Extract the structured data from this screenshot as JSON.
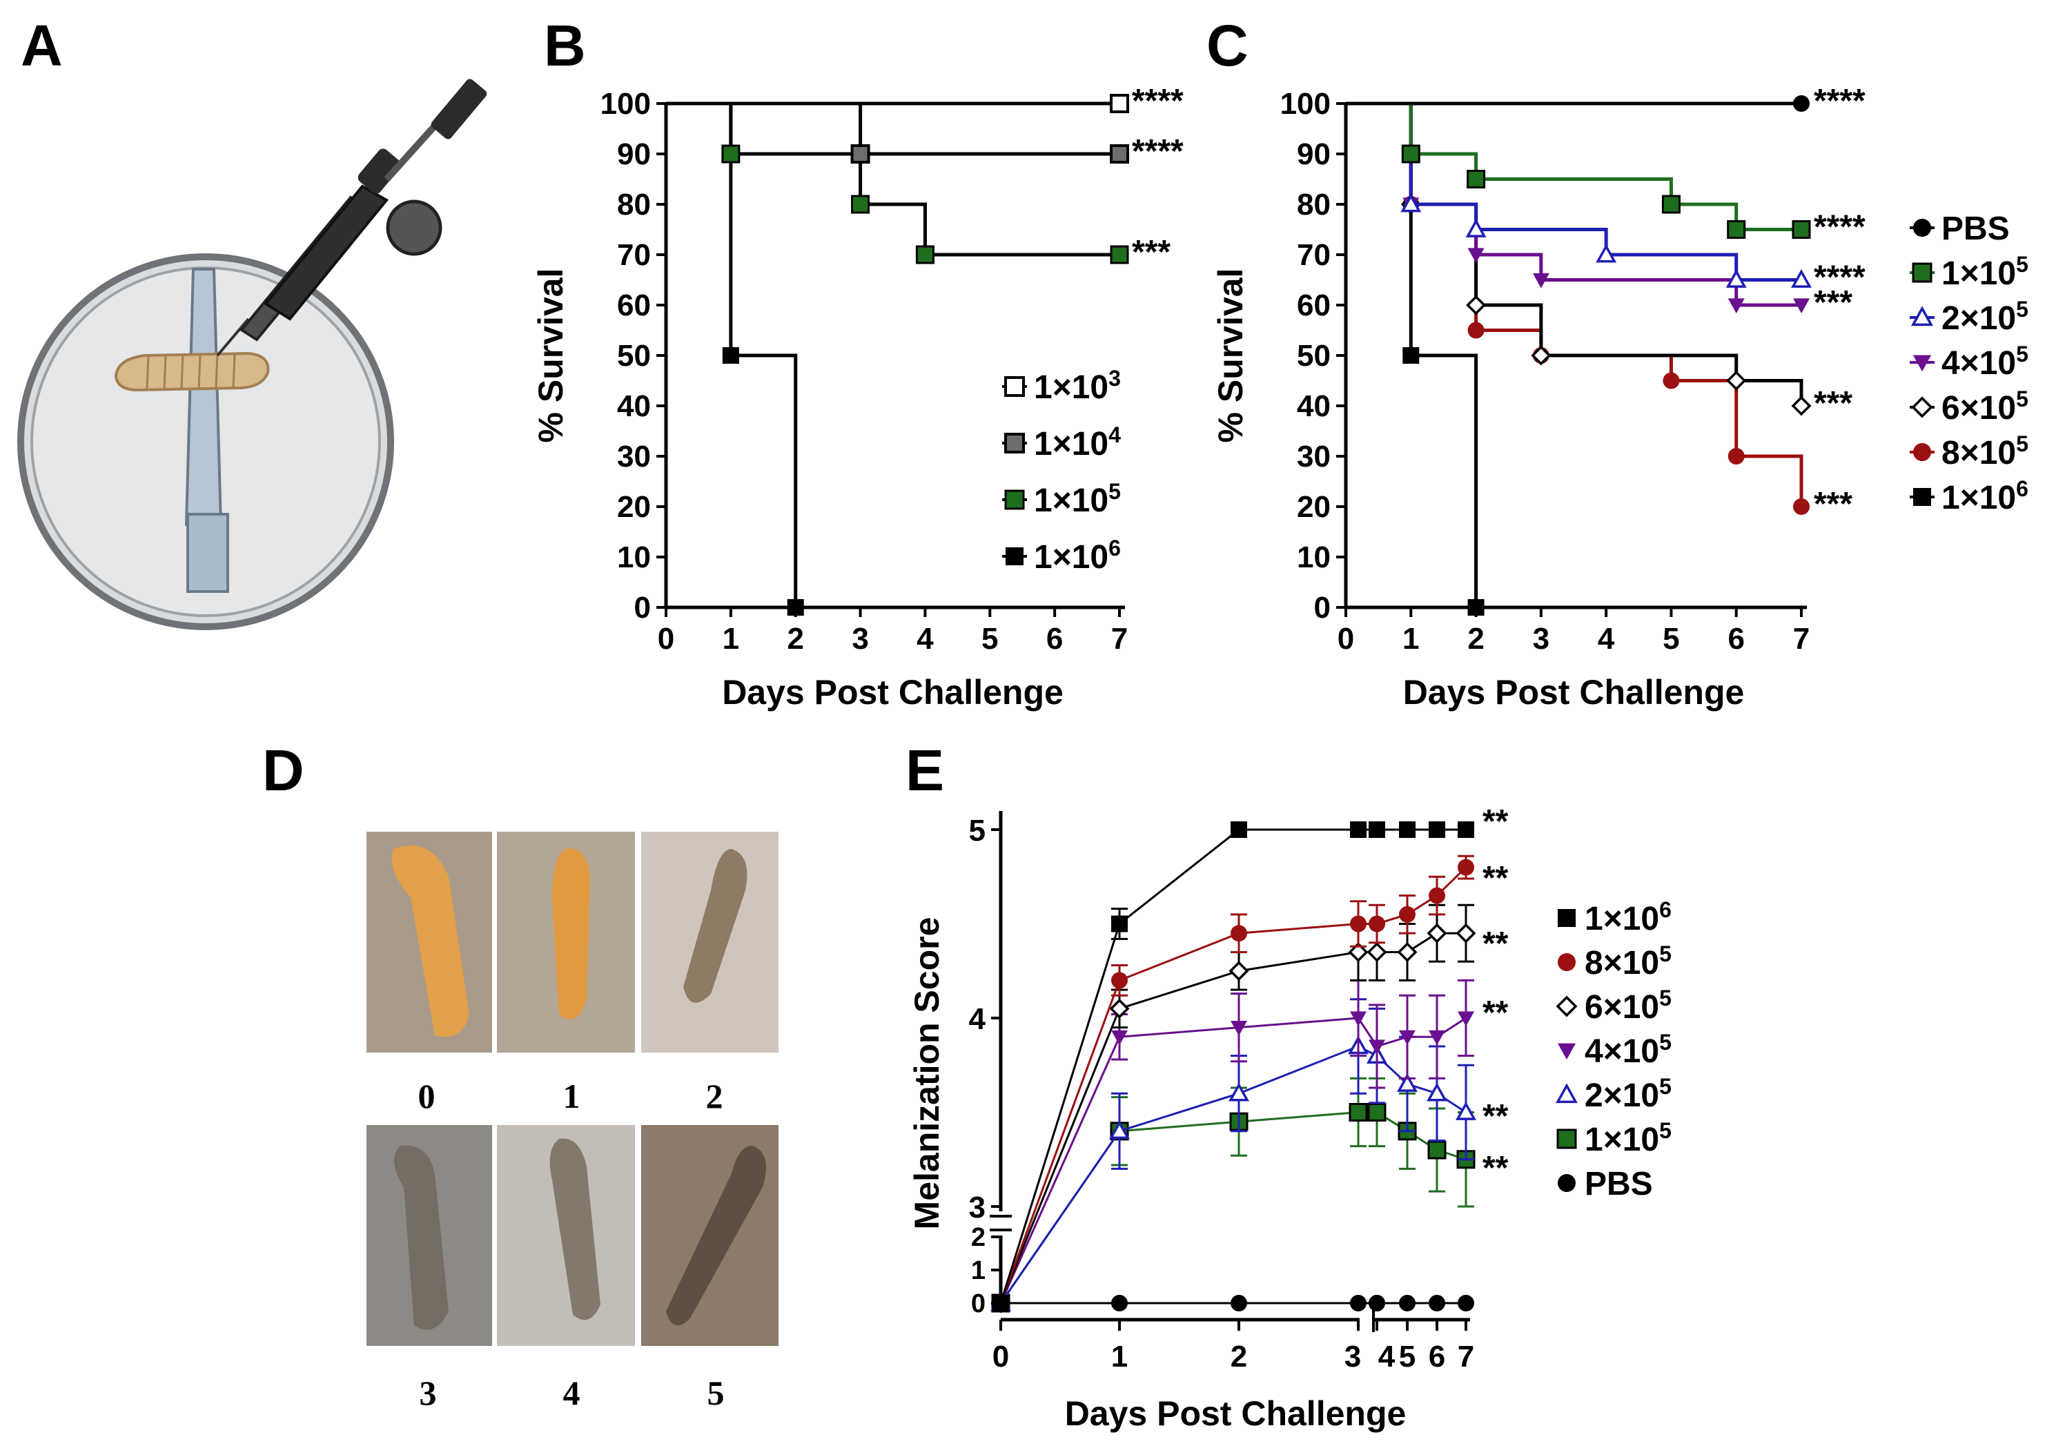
{
  "panels": {
    "a": "A",
    "b": "B",
    "c": "C",
    "d": "D",
    "e": "E"
  },
  "colors": {
    "black": "#000000",
    "gray": "#6d6d6d",
    "green": "#1e6e1e",
    "blue": "#1f1fb4",
    "purple": "#6a0f8e",
    "red": "#9b1010",
    "white": "#ffffff"
  },
  "panel_d": {
    "score_labels": [
      "0",
      "1",
      "2",
      "3",
      "4",
      "5"
    ],
    "photo_colors": [
      "#e3a04a",
      "#e19a3e",
      "#8e7b66",
      "#756c63",
      "#82786c",
      "#5f4f42"
    ]
  },
  "chart_data": [
    {
      "id": "B",
      "type": "line",
      "step": true,
      "xlabel": "Days Post Challenge",
      "ylabel": "% Survival",
      "xlim": [
        0,
        7
      ],
      "ylim": [
        0,
        100
      ],
      "xticks": [
        0,
        1,
        2,
        3,
        4,
        5,
        6,
        7
      ],
      "yticks": [
        0,
        10,
        20,
        30,
        40,
        50,
        60,
        70,
        80,
        90,
        100
      ],
      "legend_position": "right",
      "series": [
        {
          "name": "1×10^3",
          "base": "1×10",
          "exp": "3",
          "marker": "square-open",
          "color": "#000000",
          "x": [
            0,
            7
          ],
          "y": [
            100,
            100
          ],
          "markers": [
            [
              7,
              100
            ]
          ],
          "sig": "****"
        },
        {
          "name": "1×10^4",
          "base": "1×10",
          "exp": "4",
          "marker": "square-gray",
          "color": "#000000",
          "x": [
            0,
            3,
            7
          ],
          "y": [
            100,
            90,
            90
          ],
          "markers": [
            [
              3,
              90
            ],
            [
              7,
              90
            ]
          ],
          "sig": "****"
        },
        {
          "name": "1×10^5",
          "base": "1×10",
          "exp": "5",
          "marker": "square-green",
          "color": "#000000",
          "x": [
            0,
            1,
            3,
            4,
            7
          ],
          "y": [
            100,
            90,
            80,
            70,
            70
          ],
          "markers": [
            [
              1,
              90
            ],
            [
              3,
              80
            ],
            [
              4,
              70
            ],
            [
              7,
              70
            ]
          ],
          "sig": "***"
        },
        {
          "name": "1×10^6",
          "base": "1×10",
          "exp": "6",
          "marker": "square-black",
          "color": "#000000",
          "x": [
            0,
            1,
            2
          ],
          "y": [
            100,
            50,
            0
          ],
          "markers": [
            [
              1,
              50
            ],
            [
              2,
              0
            ]
          ],
          "sig": ""
        }
      ]
    },
    {
      "id": "C",
      "type": "line",
      "step": true,
      "xlabel": "Days Post Challenge",
      "ylabel": "% Survival",
      "xlim": [
        0,
        7
      ],
      "ylim": [
        0,
        100
      ],
      "xticks": [
        0,
        1,
        2,
        3,
        4,
        5,
        6,
        7
      ],
      "yticks": [
        0,
        10,
        20,
        30,
        40,
        50,
        60,
        70,
        80,
        90,
        100
      ],
      "legend_position": "right",
      "series": [
        {
          "name": "PBS",
          "marker": "circle-black",
          "color": "#000000",
          "x": [
            0,
            7
          ],
          "y": [
            100,
            100
          ],
          "markers": [
            [
              7,
              100
            ]
          ],
          "sig": "****"
        },
        {
          "name": "1×10^5",
          "base": "1×10",
          "exp": "5",
          "marker": "square-green",
          "color": "#1e6e1e",
          "x": [
            0,
            1,
            2,
            5,
            6,
            7
          ],
          "y": [
            100,
            90,
            85,
            80,
            75,
            75
          ],
          "markers": [
            [
              1,
              90
            ],
            [
              2,
              85
            ],
            [
              5,
              80
            ],
            [
              6,
              75
            ],
            [
              7,
              75
            ]
          ],
          "sig": "****"
        },
        {
          "name": "2×10^5",
          "base": "2×10",
          "exp": "5",
          "marker": "triangle-up-open",
          "color": "#1f1fb4",
          "x": [
            0,
            1,
            2,
            4,
            6,
            7
          ],
          "y": [
            100,
            80,
            75,
            70,
            65,
            65
          ],
          "markers": [
            [
              1,
              80
            ],
            [
              2,
              75
            ],
            [
              4,
              70
            ],
            [
              6,
              65
            ],
            [
              7,
              65
            ]
          ],
          "sig": "****"
        },
        {
          "name": "4×10^5",
          "base": "4×10",
          "exp": "5",
          "marker": "triangle-down",
          "color": "#6a0f8e",
          "x": [
            0,
            1,
            2,
            3,
            6,
            7
          ],
          "y": [
            100,
            80,
            70,
            65,
            60,
            60
          ],
          "markers": [
            [
              1,
              80
            ],
            [
              2,
              70
            ],
            [
              3,
              65
            ],
            [
              6,
              60
            ],
            [
              7,
              60
            ]
          ],
          "sig": "***"
        },
        {
          "name": "6×10^5",
          "base": "6×10",
          "exp": "5",
          "marker": "diamond-open",
          "color": "#000000",
          "x": [
            0,
            1,
            2,
            3,
            6,
            7
          ],
          "y": [
            100,
            80,
            60,
            50,
            45,
            40
          ],
          "markers": [
            [
              1,
              80
            ],
            [
              2,
              60
            ],
            [
              3,
              50
            ],
            [
              6,
              45
            ],
            [
              7,
              40
            ]
          ],
          "sig": "***"
        },
        {
          "name": "8×10^5",
          "base": "8×10",
          "exp": "5",
          "marker": "circle-red",
          "color": "#9b1010",
          "x": [
            0,
            1,
            2,
            3,
            5,
            6,
            7
          ],
          "y": [
            100,
            80,
            55,
            50,
            45,
            30,
            20
          ],
          "markers": [
            [
              1,
              80
            ],
            [
              2,
              55
            ],
            [
              3,
              50
            ],
            [
              5,
              45
            ],
            [
              6,
              30
            ],
            [
              7,
              20
            ]
          ],
          "sig": "***"
        },
        {
          "name": "1×10^6",
          "base": "1×10",
          "exp": "6",
          "marker": "square-black",
          "color": "#000000",
          "x": [
            0,
            1,
            2
          ],
          "y": [
            100,
            50,
            0
          ],
          "markers": [
            [
              1,
              50
            ],
            [
              2,
              0
            ]
          ],
          "sig": ""
        }
      ]
    },
    {
      "id": "E",
      "type": "line",
      "step": false,
      "xlabel": "Days Post Challenge",
      "ylabel": "Melanization Score",
      "xticks": [
        0,
        1,
        2,
        3,
        4,
        5,
        6,
        7
      ],
      "yticks": [
        0,
        1,
        2,
        3,
        4,
        5
      ],
      "legend_position": "right",
      "series": [
        {
          "name": "1×10^6",
          "base": "1×10",
          "exp": "6",
          "marker": "square-black",
          "color": "#000000",
          "x": [
            0,
            1,
            2,
            3,
            3.4,
            4,
            5,
            6,
            7
          ],
          "y": [
            0,
            4.5,
            5,
            5,
            5,
            5,
            5,
            5,
            5
          ],
          "err": [
            0,
            0.08,
            0,
            0,
            0,
            0,
            0,
            0,
            0
          ],
          "sig": "**"
        },
        {
          "name": "8×10^5",
          "base": "8×10",
          "exp": "5",
          "marker": "circle-red",
          "color": "#9b1010",
          "x": [
            0,
            1,
            2,
            3,
            4,
            5,
            6,
            7
          ],
          "y": [
            0,
            4.2,
            4.45,
            4.5,
            4.5,
            4.55,
            4.65,
            4.8
          ],
          "err": [
            0,
            0.08,
            0.1,
            0.12,
            0.1,
            0.1,
            0.1,
            0.06
          ],
          "sig": "**"
        },
        {
          "name": "6×10^5",
          "base": "6×10",
          "exp": "5",
          "marker": "diamond-open",
          "color": "#000000",
          "x": [
            0,
            1,
            2,
            3,
            4,
            5,
            6,
            7
          ],
          "y": [
            0,
            4.05,
            4.25,
            4.35,
            4.35,
            4.35,
            4.45,
            4.45
          ],
          "err": [
            0,
            0.1,
            0.1,
            0.15,
            0.15,
            0.15,
            0.15,
            0.15
          ],
          "sig": "**"
        },
        {
          "name": "4×10^5",
          "base": "4×10",
          "exp": "5",
          "marker": "triangle-down",
          "color": "#6a0f8e",
          "x": [
            0,
            1,
            2,
            3,
            4,
            5,
            6,
            7
          ],
          "y": [
            0,
            3.9,
            3.95,
            4.0,
            3.85,
            3.9,
            3.9,
            4.0
          ],
          "err": [
            0,
            0.12,
            0.18,
            0.2,
            0.22,
            0.22,
            0.22,
            0.2
          ],
          "sig": "**"
        },
        {
          "name": "2×10^5",
          "base": "2×10",
          "exp": "5",
          "marker": "triangle-up-open",
          "color": "#1f1fb4",
          "x": [
            0,
            1,
            2,
            3,
            4,
            5,
            6,
            7
          ],
          "y": [
            0,
            3.4,
            3.6,
            3.85,
            3.8,
            3.65,
            3.6,
            3.5
          ],
          "err": [
            0,
            0.2,
            0.2,
            0.25,
            0.25,
            0.25,
            0.25,
            0.25
          ],
          "sig": "**"
        },
        {
          "name": "1×10^5",
          "base": "1×10",
          "exp": "5",
          "marker": "square-green",
          "color": "#1e6e1e",
          "x": [
            0,
            1,
            2,
            3,
            4,
            5,
            6,
            7
          ],
          "y": [
            0,
            3.4,
            3.45,
            3.5,
            3.5,
            3.4,
            3.3,
            3.25
          ],
          "err": [
            0,
            0.18,
            0.18,
            0.18,
            0.18,
            0.2,
            0.22,
            0.25
          ],
          "sig": "**"
        },
        {
          "name": "PBS",
          "marker": "circle-black",
          "color": "#000000",
          "x": [
            0,
            1,
            2,
            3,
            3.4,
            4,
            5,
            6,
            7
          ],
          "y": [
            0,
            0,
            0,
            0,
            0,
            0,
            0,
            0,
            0
          ],
          "err": [
            0,
            0,
            0,
            0,
            0,
            0,
            0,
            0,
            0
          ],
          "sig": ""
        }
      ],
      "xtick_labels": [
        "0",
        "1",
        "2",
        "3",
        "4",
        "5",
        "6",
        "7"
      ],
      "ytick_labels": [
        "0",
        "1",
        "2",
        "3",
        "4",
        "5"
      ]
    }
  ]
}
